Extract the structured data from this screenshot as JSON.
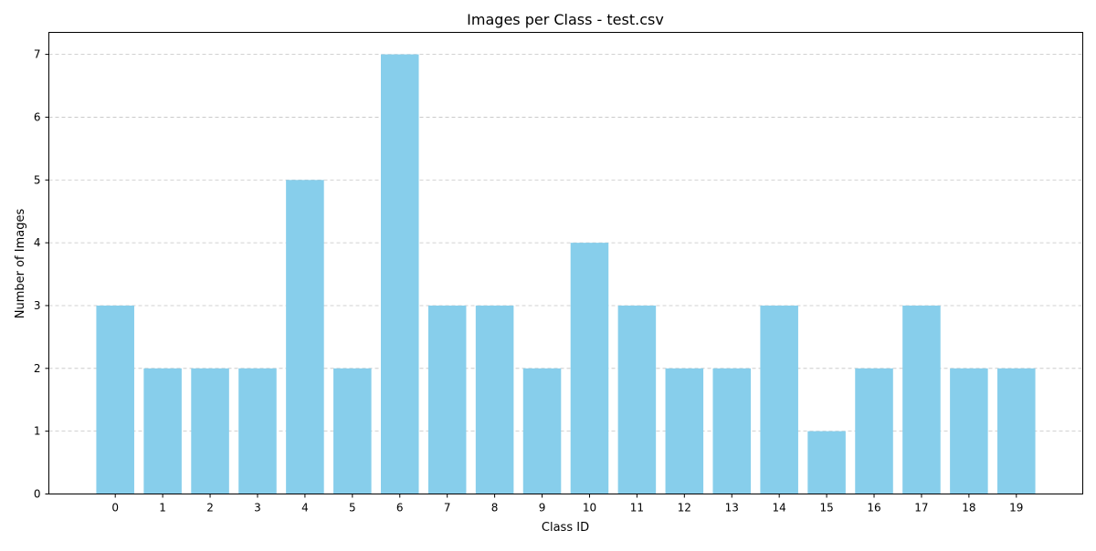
{
  "chart_data": {
    "type": "bar",
    "title": "Images per Class - test.csv",
    "xlabel": "Class ID",
    "ylabel": "Number of Images",
    "categories": [
      "0",
      "1",
      "2",
      "3",
      "4",
      "5",
      "6",
      "7",
      "8",
      "9",
      "10",
      "11",
      "12",
      "13",
      "14",
      "15",
      "16",
      "17",
      "18",
      "19"
    ],
    "values": [
      3,
      2,
      2,
      2,
      5,
      2,
      7,
      3,
      3,
      2,
      4,
      3,
      2,
      2,
      3,
      1,
      2,
      3,
      2,
      2
    ],
    "ylim": [
      0,
      7.35
    ],
    "yticks": [
      0,
      1,
      2,
      3,
      4,
      5,
      6,
      7
    ],
    "grid": "y-dashed",
    "bar_color": "#87ceeb",
    "legend": "none"
  }
}
